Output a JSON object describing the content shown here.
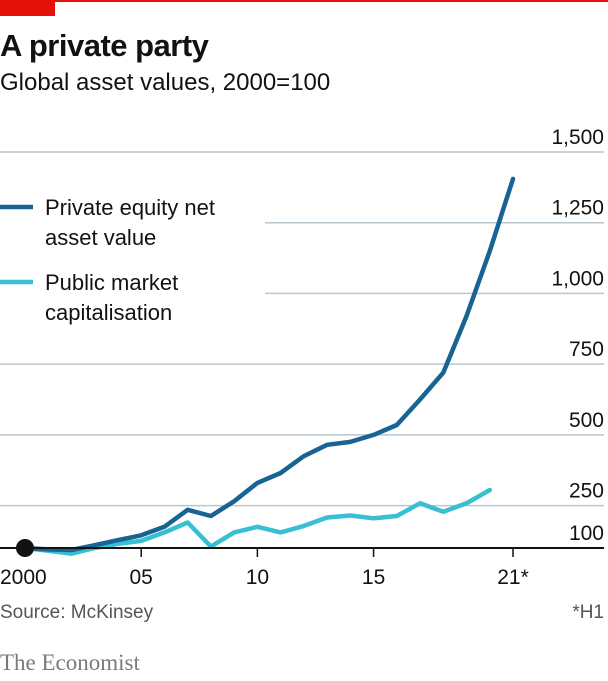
{
  "header": {
    "title": "A private party",
    "subtitle": "Global asset values, 2000=100"
  },
  "footer": {
    "source": "Source: McKinsey",
    "footnote": "*H1",
    "brand": "The Economist"
  },
  "colors": {
    "accent": "#e3120b",
    "private_equity": "#176392",
    "public_market": "#38bfd4",
    "gridline": "#b7c6cf",
    "baseline": "#121212"
  },
  "chart_data": {
    "type": "line",
    "title": "A private party",
    "subtitle": "Global asset values, 2000=100",
    "xlabel": "",
    "ylabel": "",
    "xlim": [
      2000,
      2022.5
    ],
    "ylim": [
      100,
      1500
    ],
    "yticks": [
      100,
      250,
      500,
      750,
      1000,
      1250,
      1500
    ],
    "ytick_labels": [
      "100",
      "250",
      "500",
      "750",
      "1,000",
      "1,250",
      "1,500"
    ],
    "xticks": [
      2000,
      2005,
      2010,
      2015,
      2021
    ],
    "xtick_labels": [
      "2000",
      "05",
      "10",
      "15",
      "21*"
    ],
    "grid": true,
    "legend_position": "top-left",
    "series": [
      {
        "name": "Private equity net asset value",
        "legend_lines": [
          "Private equity net",
          "asset value"
        ],
        "color": "#176392",
        "x": [
          2000,
          2001,
          2002,
          2003,
          2004,
          2005,
          2006,
          2007,
          2008,
          2009,
          2010,
          2011,
          2012,
          2013,
          2014,
          2015,
          2016,
          2017,
          2018,
          2019,
          2020,
          2021
        ],
        "values": [
          100,
          95,
          93,
          110,
          128,
          145,
          175,
          235,
          213,
          265,
          330,
          365,
          425,
          465,
          475,
          500,
          535,
          625,
          720,
          920,
          1150,
          1405
        ]
      },
      {
        "name": "Public market capitalisation",
        "legend_lines": [
          "Public market",
          "capitalisation"
        ],
        "color": "#38bfd4",
        "x": [
          2000,
          2001,
          2002,
          2003,
          2004,
          2005,
          2006,
          2007,
          2008,
          2009,
          2010,
          2011,
          2012,
          2013,
          2014,
          2015,
          2016,
          2017,
          2018,
          2019,
          2020
        ],
        "values": [
          100,
          90,
          80,
          100,
          115,
          125,
          155,
          190,
          105,
          155,
          175,
          155,
          178,
          208,
          215,
          205,
          213,
          258,
          228,
          258,
          305
        ]
      }
    ],
    "markers": [
      {
        "label": "start",
        "x": 2000,
        "y": 100
      }
    ]
  }
}
